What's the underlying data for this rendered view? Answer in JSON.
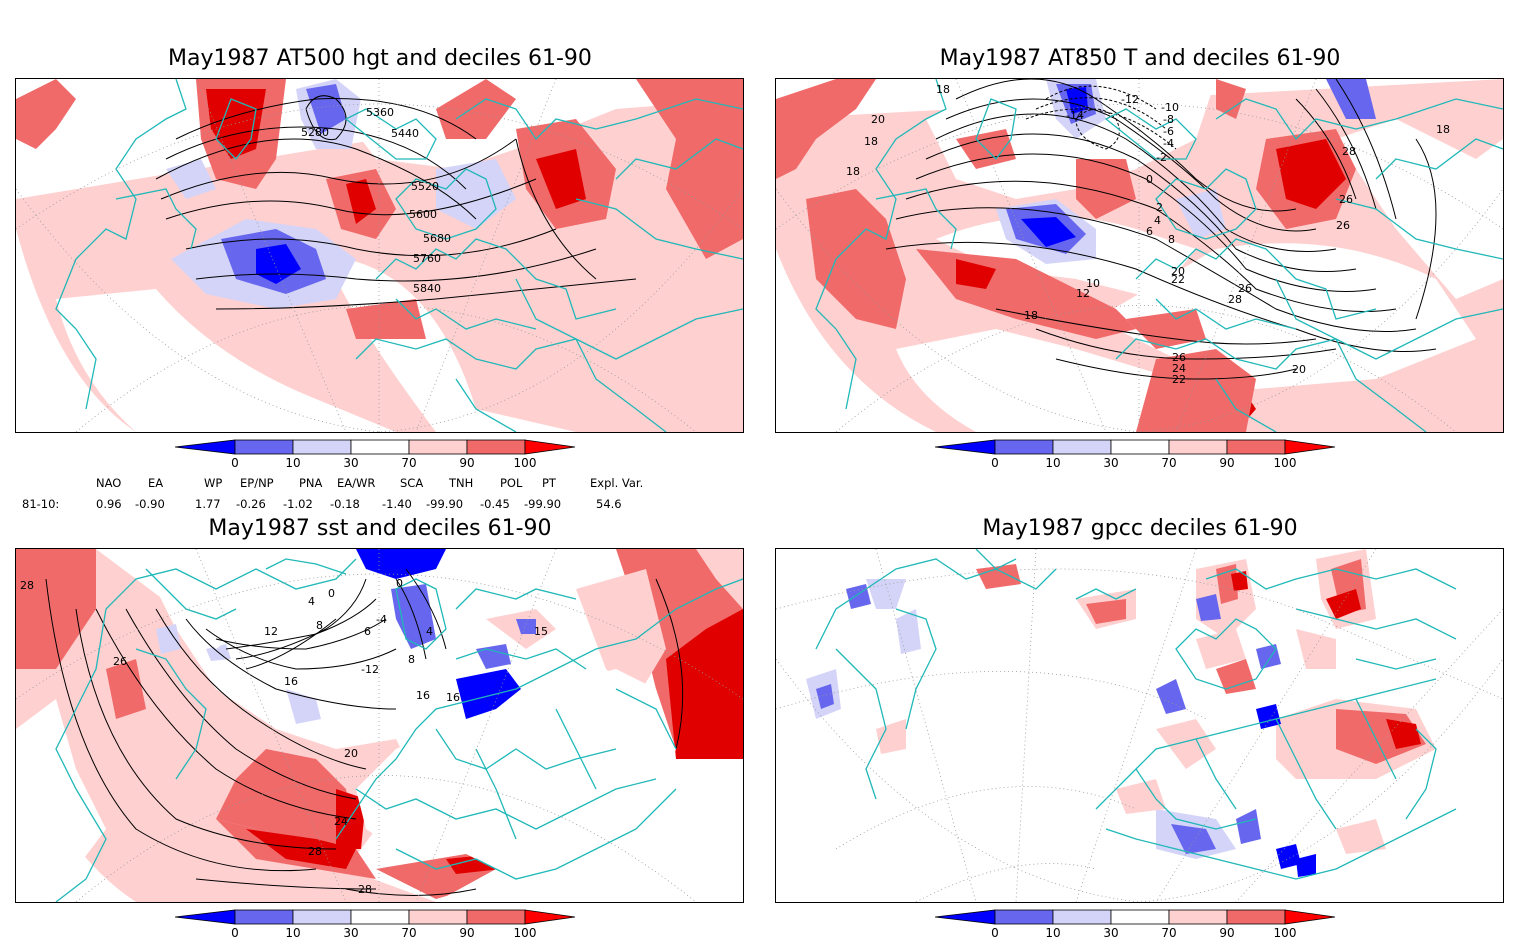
{
  "panels": [
    {
      "id": "at500",
      "title": "May1987 AT500 hgt and deciles 61-90",
      "contour_labels": [
        "5280",
        "5360",
        "5440",
        "5520",
        "5600",
        "5680",
        "5760",
        "5840"
      ]
    },
    {
      "id": "at850",
      "title": "May1987 AT850 T and deciles 61-90",
      "contour_labels": [
        "18",
        "20",
        "18",
        "18",
        "-14",
        "-12",
        "-10",
        "-8",
        "-6",
        "-4",
        "-2",
        "0",
        "2",
        "4",
        "6",
        "8",
        "10",
        "12",
        "18",
        "20",
        "22",
        "26",
        "28",
        "26",
        "24",
        "22",
        "20",
        "18",
        "26",
        "28",
        "26"
      ]
    },
    {
      "id": "sst",
      "title": "May1987 sst and deciles 61-90",
      "contour_labels": [
        "28",
        "26",
        "0",
        "0",
        "4",
        "12",
        "8",
        "6",
        "-4",
        "4",
        "8",
        "16",
        "16",
        "-12",
        "20",
        "24",
        "28",
        "28",
        "15",
        "16"
      ]
    },
    {
      "id": "gpcc",
      "title": "May1987 gpcc deciles 61-90",
      "contour_labels": []
    }
  ],
  "colorbar": {
    "ticks": [
      "0",
      "10",
      "30",
      "70",
      "90",
      "100"
    ],
    "colors": [
      "#0000ff",
      "#6666ee",
      "#d4d4f8",
      "#ffffff",
      "#ffd0d0",
      "#f06a6a",
      "#ff0000"
    ]
  },
  "indices": {
    "headers": [
      "NAO",
      "EA",
      "WP",
      "EP/NP",
      "PNA",
      "EA/WR",
      "SCA",
      "TNH",
      "POL",
      "PT",
      "Expl. Var."
    ],
    "row_label": "81-10:",
    "values": [
      "0.96",
      "-0.90",
      "1.77",
      "-0.26",
      "-1.02",
      "-0.18",
      "-1.40",
      "-99.90",
      "-0.45",
      "-99.90",
      "54.6"
    ]
  },
  "colors": {
    "coast": "#20b8b8",
    "contour": "#000000",
    "grid": "#999999"
  }
}
